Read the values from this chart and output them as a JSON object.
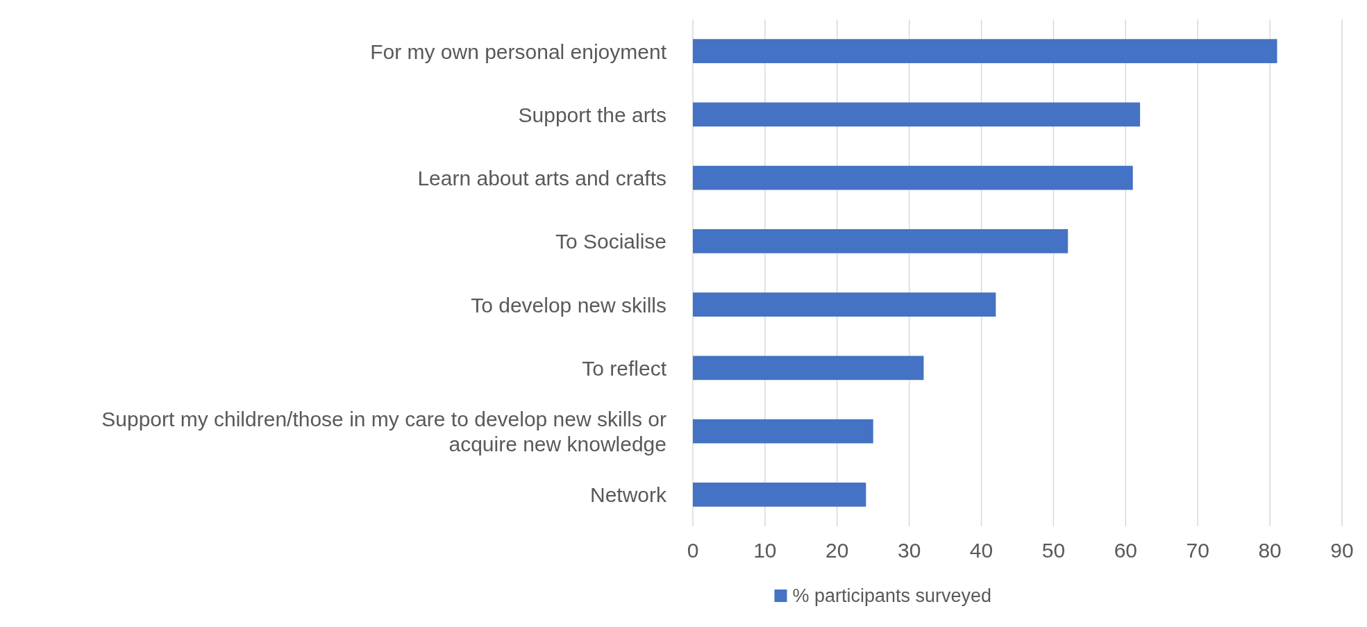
{
  "chart_data": {
    "type": "bar",
    "orientation": "horizontal",
    "categories": [
      "For my own personal enjoyment",
      "Support the arts",
      "Learn about arts and crafts",
      "To Socialise",
      "To develop new skills",
      "To reflect",
      "Support my children/those in my care to develop new skills or acquire new knowledge",
      "Network"
    ],
    "series": [
      {
        "name": "% participants surveyed",
        "color": "#4472c4",
        "values": [
          81,
          62,
          61,
          52,
          42,
          32,
          25,
          24
        ]
      }
    ],
    "xlim": [
      0,
      90
    ],
    "xticks": [
      0,
      10,
      20,
      30,
      40,
      50,
      60,
      70,
      80,
      90
    ],
    "grid": "x",
    "legend": "bottom"
  }
}
